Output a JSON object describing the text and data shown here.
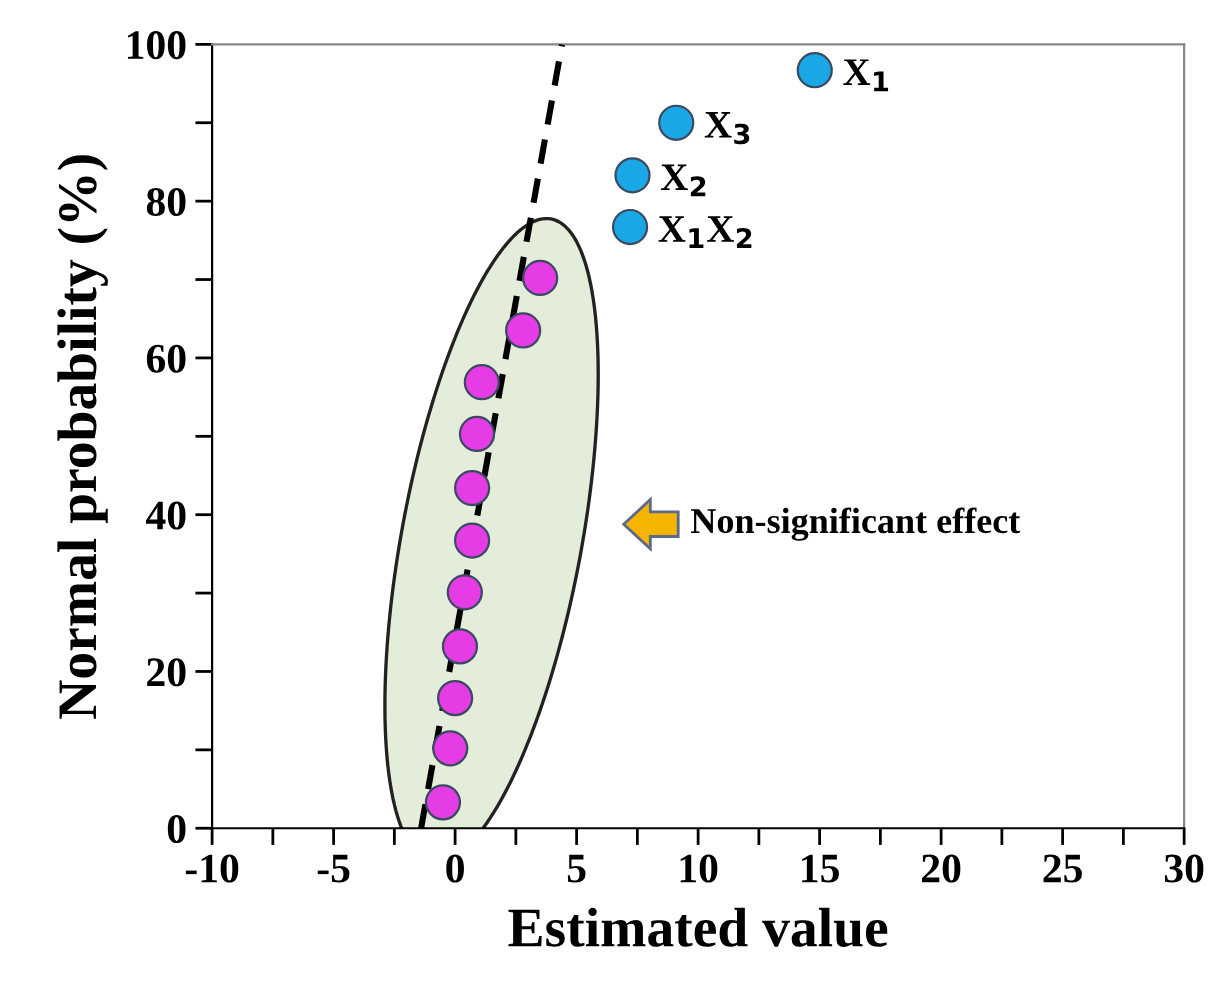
{
  "chart_data": {
    "type": "scatter",
    "xlabel": "Estimated value",
    "ylabel": "Normal probability (%)",
    "xlim": [
      -10,
      30
    ],
    "ylim": [
      0,
      100
    ],
    "xticks": [
      -10,
      {
        "value": -7.5,
        "label": null
      },
      -5,
      {
        "value": -2.5,
        "label": null
      },
      0,
      {
        "value": 2.5,
        "label": null
      },
      5,
      {
        "value": 7.5,
        "label": null
      },
      10,
      {
        "value": 12.5,
        "label": null
      },
      15,
      {
        "value": 17.5,
        "label": null
      },
      20,
      {
        "value": 22.5,
        "label": null
      },
      25,
      {
        "value": 27.5,
        "label": null
      },
      30
    ],
    "yticks": [
      0,
      {
        "value": 10,
        "label": null
      },
      20,
      {
        "value": 30,
        "label": null
      },
      40,
      {
        "value": 50,
        "label": null
      },
      60,
      {
        "value": 70,
        "label": null
      },
      80,
      {
        "value": 90,
        "label": null
      },
      100
    ],
    "grid": false,
    "legend": false,
    "marker": "circle",
    "series": [
      {
        "color": "#e63ce6",
        "x": [
          -0.5,
          -0.2,
          0,
          0.2,
          0.4,
          0.7,
          0.7,
          0.9,
          1.1,
          2.8,
          3.5
        ],
        "values": [
          3.3,
          10.2,
          16.6,
          23.2,
          30.1,
          36.7,
          43.4,
          50.3,
          56.9,
          63.5,
          70.2
        ]
      },
      {
        "color": "#1aa7e6",
        "x": [
          7.2,
          7.3,
          9.1,
          14.8
        ],
        "values": [
          76.7,
          83.3,
          90.0,
          96.7
        ]
      },
      {
        "type": "line",
        "color": "#000000",
        "line_style": "dashed",
        "marker": "none",
        "x": [
          -1.4,
          4.4
        ],
        "values": [
          0,
          100
        ]
      }
    ],
    "annotations": [
      {
        "text": "X$_{1}$X$_{2}$",
        "x": 7.2,
        "y": 76.7
      },
      {
        "text": "X$_{2}$",
        "x": 7.3,
        "y": 83.3
      },
      {
        "text": "X$_{3}$",
        "x": 9.1,
        "y": 90.0
      },
      {
        "text": "X$_{1}$",
        "x": 14.8,
        "y": 96.7
      },
      "Non-significant effect"
    ]
  }
}
